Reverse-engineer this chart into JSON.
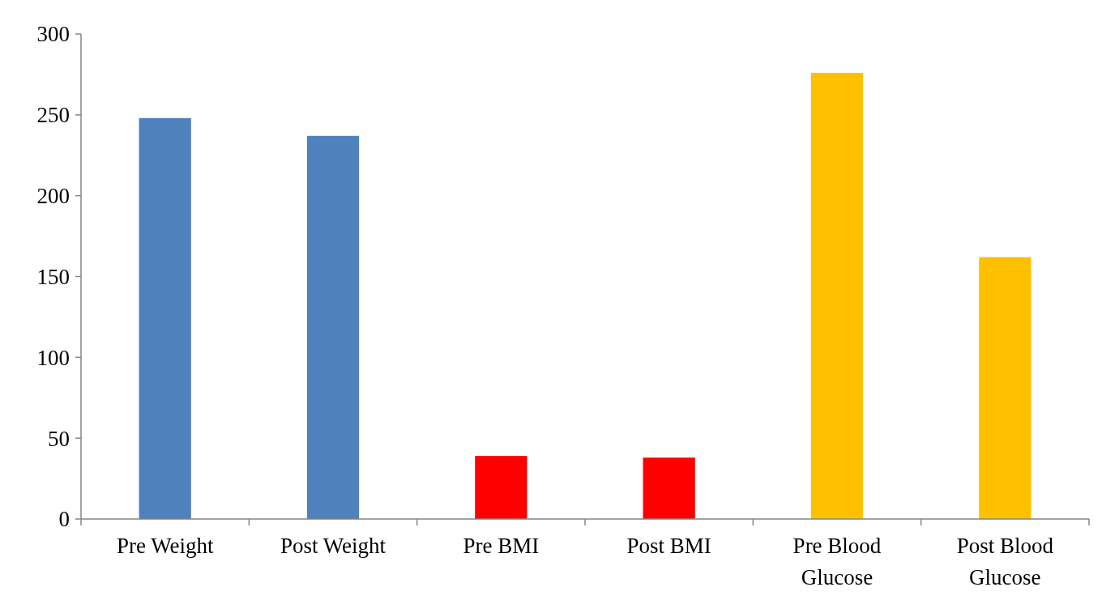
{
  "chart_data": {
    "type": "bar",
    "categories": [
      "Pre Weight",
      "Post Weight",
      "Pre BMI",
      "Post BMI",
      "Pre Blood Glucose",
      "Post Blood Glucose"
    ],
    "values": [
      248,
      237,
      39,
      38,
      276,
      162
    ],
    "colors": [
      "#4f81bd",
      "#4f81bd",
      "#ff0000",
      "#ff0000",
      "#ffc000",
      "#ffc000"
    ],
    "ylim": [
      0,
      300
    ],
    "yticks": [
      0,
      50,
      100,
      150,
      200,
      250,
      300
    ],
    "grid": false
  }
}
